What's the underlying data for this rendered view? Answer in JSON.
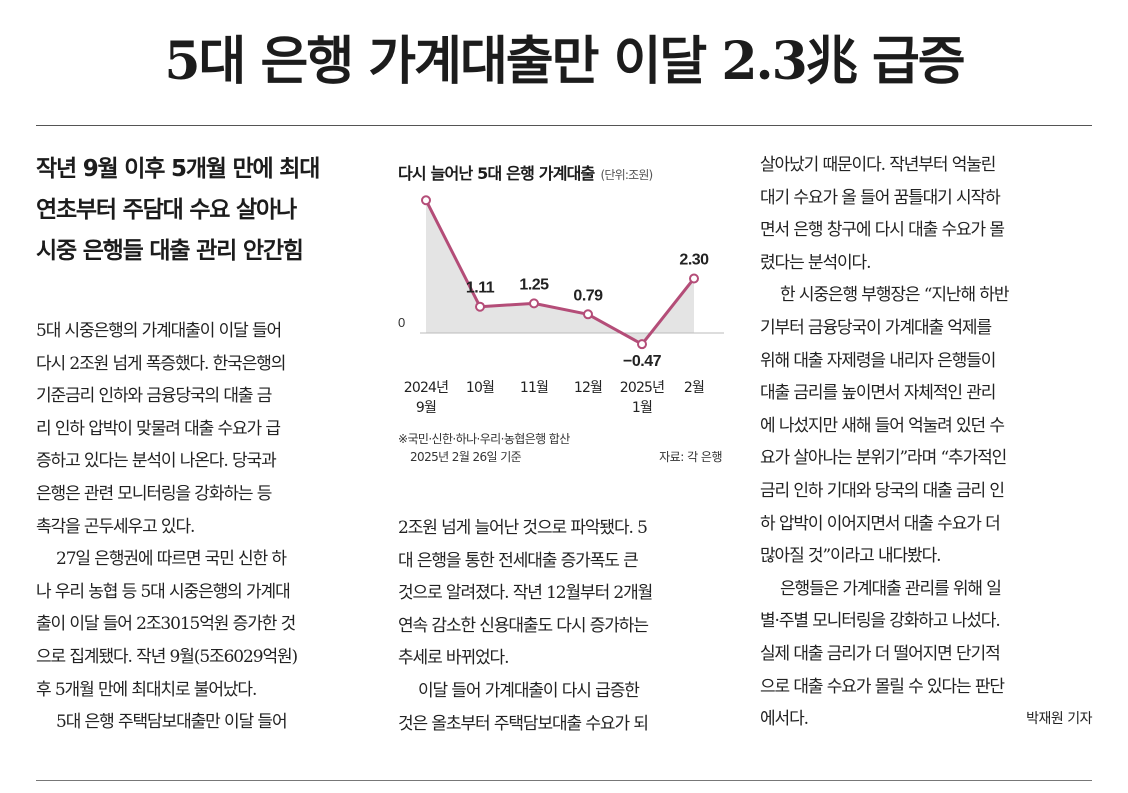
{
  "headline": "5대 은행 가계대출만 이달 2.3兆 급증",
  "deck": [
    "작년 9월 이후 5개월 만에 최대",
    "연초부터 주담대 수요 살아나",
    "시중 은행들 대출 관리 안간힘"
  ],
  "column1": [
    {
      "text": "5대 시중은행의 가계대출이 이달 들어",
      "indent": false
    },
    {
      "text": "다시 2조원 넘게 폭증했다. 한국은행의",
      "indent": false
    },
    {
      "text": "기준금리 인하와 금융당국의 대출 금",
      "indent": false
    },
    {
      "text": "리 인하 압박이 맞물려 대출 수요가 급",
      "indent": false
    },
    {
      "text": "증하고 있다는 분석이 나온다. 당국과",
      "indent": false
    },
    {
      "text": "은행은 관련 모니터링을 강화하는 등",
      "indent": false
    },
    {
      "text": "촉각을 곤두세우고 있다.",
      "indent": false
    },
    {
      "text": "27일 은행권에 따르면 국민 신한 하",
      "indent": true
    },
    {
      "text": "나 우리 농협 등 5대 시중은행의 가계대",
      "indent": false
    },
    {
      "text": "출이 이달 들어 2조3015억원 증가한 것",
      "indent": false
    },
    {
      "text": "으로 집계됐다. 작년 9월(5조6029억원)",
      "indent": false
    },
    {
      "text": "후 5개월 만에 최대치로 불어났다.",
      "indent": false
    },
    {
      "text": "5대 은행 주택담보대출만 이달 들어",
      "indent": true
    }
  ],
  "column2": [
    {
      "text": "2조원 넘게 늘어난 것으로 파악됐다. 5",
      "indent": false
    },
    {
      "text": "대 은행을 통한 전세대출 증가폭도 큰",
      "indent": false
    },
    {
      "text": "것으로 알려졌다. 작년 12월부터 2개월",
      "indent": false
    },
    {
      "text": "연속 감소한 신용대출도 다시 증가하는",
      "indent": false
    },
    {
      "text": "추세로 바뀌었다.",
      "indent": false
    },
    {
      "text": "이달 들어 가계대출이 다시 급증한",
      "indent": true
    },
    {
      "text": "것은 올초부터 주택담보대출 수요가 되",
      "indent": false
    }
  ],
  "column3": [
    {
      "text": "살아났기 때문이다. 작년부터 억눌린",
      "indent": false
    },
    {
      "text": "대기 수요가 올 들어 꿈틀대기 시작하",
      "indent": false
    },
    {
      "text": "면서 은행 창구에 다시 대출 수요가 몰",
      "indent": false
    },
    {
      "text": "렸다는 분석이다.",
      "indent": false
    },
    {
      "text": "한 시중은행 부행장은 “지난해 하반",
      "indent": true
    },
    {
      "text": "기부터 금융당국이 가계대출 억제를",
      "indent": false
    },
    {
      "text": "위해 대출 자제령을 내리자 은행들이",
      "indent": false
    },
    {
      "text": "대출 금리를 높이면서 자체적인 관리",
      "indent": false
    },
    {
      "text": "에 나섰지만 새해 들어 억눌려 있던 수",
      "indent": false
    },
    {
      "text": "요가 살아나는 분위기”라며 “추가적인",
      "indent": false
    },
    {
      "text": "금리 인하 기대와 당국의 대출 금리 인",
      "indent": false
    },
    {
      "text": "하 압박이 이어지면서 대출 수요가 더",
      "indent": false
    },
    {
      "text": "많아질 것”이라고 내다봤다.",
      "indent": false
    },
    {
      "text": "은행들은 가계대출 관리를 위해 일",
      "indent": true
    },
    {
      "text": "별·주별 모니터링을 강화하고 나섰다.",
      "indent": false
    },
    {
      "text": "실제 대출 금리가 더 떨어지면 단기적",
      "indent": false
    },
    {
      "text": "으로 대출 수요가 몰릴 수 있다는 판단",
      "indent": false
    }
  ],
  "column3_last": "에서다.",
  "byline": "박재원 기자",
  "chart_title": "다시 늘어난 5대 은행 가계대출",
  "chart_unit": "(단위:조원)",
  "chart_note_1": "※국민·신한·하나·우리·농협은행 합산",
  "chart_note_2": "2025년 2월 26일 기준",
  "chart_source": "자료: 각 은행",
  "chart_data": {
    "type": "area",
    "title": "다시 늘어난 5대 은행 가계대출",
    "unit": "단위:조원",
    "categories": [
      [
        "2024년",
        "9월"
      ],
      [
        "10월"
      ],
      [
        "11월"
      ],
      [
        "12월"
      ],
      [
        "2025년",
        "1월"
      ],
      [
        "2월"
      ]
    ],
    "values": [
      5.6,
      1.11,
      1.25,
      0.79,
      -0.47,
      2.3
    ],
    "value_labels": [
      "5.60",
      "1.11",
      "1.25",
      "0.79",
      "−0.47",
      "2.30"
    ],
    "zero_label": "0",
    "ylim": [
      -0.8,
      6.2
    ],
    "grid": false,
    "colors": {
      "line": "#b44d78",
      "marker": "#b44d78",
      "fill": "#e4e4e4",
      "baseline": "#bbbbbb"
    }
  }
}
